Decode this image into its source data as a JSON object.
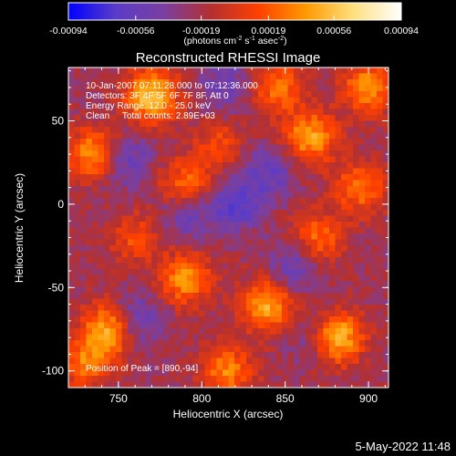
{
  "colorbar": {
    "tick_labels": [
      "-0.00094",
      "-0.00056",
      "-0.00019",
      "0.00019",
      "0.00056",
      "0.00094"
    ],
    "unit_label_parts": [
      "(photons cm",
      "-2",
      " s",
      "-1",
      " asec",
      "-2",
      ")"
    ],
    "range": [
      -0.00094,
      0.00094
    ],
    "colormap_stops": [
      "#0000ff",
      "#5a3cc8",
      "#7a3fa0",
      "#b43030",
      "#ff4000",
      "#ff9a00",
      "#ffe080",
      "#ffffff"
    ]
  },
  "chart_data": {
    "type": "heatmap",
    "title": "Reconstructed RHESSI Image",
    "xlabel": "Heliocentric X (arcsec)",
    "ylabel": "Heliocentric Y (arcsec)",
    "xlim": [
      720,
      912
    ],
    "ylim": [
      -110,
      82
    ],
    "x_ticks": [
      750,
      800,
      850,
      900
    ],
    "y_ticks": [
      50,
      0,
      -50,
      -100
    ],
    "annotations": [
      "10-Jan-2007 07:11:28.000 to 07:12:36.000",
      "Detectors: 3F 4F 5F 6F 7F 8F, Att 0",
      "Energy Range: 12.0 - 25.0 keV",
      "Clean     Total counts: 2.89E+03"
    ],
    "peak_label": "Position of Peak = [890,-94]",
    "peak": [
      890,
      -94
    ],
    "hotspots": [
      {
        "x": 880,
        "y": -80,
        "value": 0.00094
      },
      {
        "x": 840,
        "y": -60,
        "value": 0.0007
      },
      {
        "x": 770,
        "y": 65,
        "value": 0.0008
      },
      {
        "x": 735,
        "y": 30,
        "value": 0.0006
      },
      {
        "x": 745,
        "y": -75,
        "value": 0.00075
      },
      {
        "x": 790,
        "y": -45,
        "value": 0.0006
      },
      {
        "x": 865,
        "y": 40,
        "value": 0.00065
      },
      {
        "x": 895,
        "y": 10,
        "value": 0.0005
      },
      {
        "x": 790,
        "y": 10,
        "value": 0.00055
      },
      {
        "x": 730,
        "y": -95,
        "value": 0.0005
      },
      {
        "x": 845,
        "y": 70,
        "value": 0.0005
      },
      {
        "x": 815,
        "y": -100,
        "value": 0.00055
      },
      {
        "x": 900,
        "y": 70,
        "value": 0.0006
      },
      {
        "x": 810,
        "y": 35,
        "value": 0.00035
      },
      {
        "x": 760,
        "y": -20,
        "value": 0.00035
      },
      {
        "x": 870,
        "y": -20,
        "value": 0.00045
      }
    ],
    "coldspots": [
      {
        "x": 820,
        "y": 0,
        "value": -0.00045
      },
      {
        "x": 760,
        "y": -70,
        "value": -0.00045
      },
      {
        "x": 790,
        "y": -5,
        "value": -0.0004
      },
      {
        "x": 840,
        "y": 20,
        "value": -0.00035
      },
      {
        "x": 855,
        "y": -40,
        "value": -0.00035
      },
      {
        "x": 870,
        "y": -80,
        "value": -0.0004
      },
      {
        "x": 815,
        "y": 70,
        "value": -0.0003
      },
      {
        "x": 755,
        "y": 25,
        "value": -0.00035
      }
    ]
  },
  "footer": {
    "date": "5-May-2022 11:48"
  }
}
